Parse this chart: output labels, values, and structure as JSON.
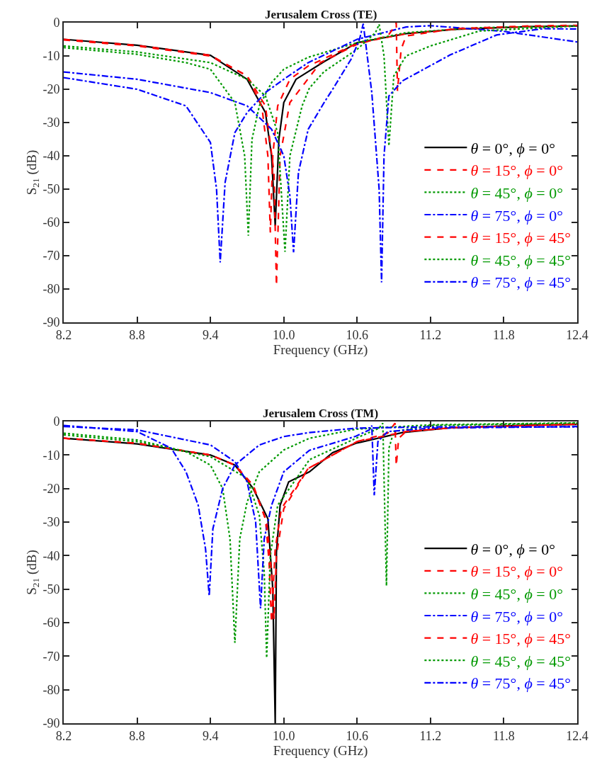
{
  "chart_data": [
    {
      "type": "line",
      "title": "Jerusalem Cross (TE)",
      "xlabel": "Frequency (GHz)",
      "ylabel": "S$_{21}$ (dB)",
      "xlim": [
        8.2,
        12.4
      ],
      "xticks": [
        8.2,
        8.8,
        9.4,
        {
          "value": 10,
          "label": "10.0"
        },
        10.6,
        11.2,
        11.8,
        12.4
      ],
      "ylim": [
        -90,
        0
      ],
      "yticks": [
        -90,
        -80,
        -70,
        -60,
        -50,
        -40,
        -30,
        -20,
        -10,
        0
      ],
      "legend": "bottom right",
      "series": [
        {
          "name": "θ = 0°, ϕ = 0°",
          "color": "#000000",
          "line_style": "solid",
          "x": [
            8.2,
            8.8,
            9.4,
            9.7,
            9.85,
            9.9,
            9.93,
            9.96,
            10.0,
            10.1,
            10.33,
            10.6,
            11.0,
            11.4,
            12.0,
            12.4
          ],
          "values": [
            -5,
            -6.8,
            -9.8,
            -17,
            -27,
            -40,
            -61,
            -35,
            -24,
            -17,
            -11.7,
            -6,
            -3.3,
            -2,
            -1.2,
            -1
          ]
        },
        {
          "name": "θ = 15°, ϕ = 0°",
          "color": "#ff0000",
          "line_style": "dashed",
          "x": [
            8.2,
            8.8,
            9.4,
            9.7,
            9.82,
            9.87,
            9.89,
            9.91,
            9.95,
            10.05,
            10.2,
            10.6,
            11.0,
            11.4,
            12.0,
            12.4
          ],
          "values": [
            -5.2,
            -7,
            -10,
            -16,
            -25,
            -40,
            -63,
            -40,
            -25,
            -17,
            -13,
            -6.2,
            -3.3,
            -2,
            -1.2,
            -1
          ]
        },
        {
          "name": "θ = 45°, ϕ = 0°",
          "color": "#009900",
          "line_style": "dotted",
          "x": [
            8.2,
            8.8,
            9.2,
            9.4,
            9.6,
            9.68,
            9.71,
            9.74,
            9.8,
            9.9,
            10.0,
            10.2,
            10.6,
            11.0,
            11.6,
            12.4
          ],
          "values": [
            -7.5,
            -9.5,
            -12,
            -14,
            -24,
            -40,
            -64,
            -35,
            -25,
            -18,
            -14,
            -10.4,
            -6,
            -3,
            -1.5,
            -1
          ]
        },
        {
          "name": "θ = 75°, ϕ = 0°",
          "color": "#0000ff",
          "line_style": "dashdot",
          "x": [
            8.2,
            8.8,
            9.2,
            9.4,
            9.45,
            9.48,
            9.52,
            9.6,
            9.7,
            9.85,
            10.0,
            10.2,
            10.6,
            11.0,
            11.2,
            11.8,
            12.4
          ],
          "values": [
            -16.5,
            -20,
            -25,
            -36,
            -50,
            -72,
            -48,
            -33,
            -27,
            -21,
            -17,
            -12,
            -5,
            -1.3,
            -0.9,
            -2.6,
            -5.8
          ]
        },
        {
          "name": "θ = 15°, ϕ = 45°",
          "color": "#ff0000",
          "line_style": "dashed",
          "x": [
            8.2,
            8.8,
            9.4,
            9.7,
            9.85,
            9.92,
            9.94,
            9.97,
            10.05,
            10.3,
            10.6,
            10.85,
            10.91,
            10.92,
            10.93,
            10.96,
            11.0,
            11.4,
            12.0,
            12.4
          ],
          "values": [
            -5,
            -6.8,
            -9.8,
            -16,
            -25,
            -45,
            -79,
            -40,
            -24,
            -12,
            -6.5,
            -4,
            -1,
            0,
            -20.5,
            -8,
            -4,
            -1.8,
            -1,
            -0.8
          ]
        },
        {
          "name": "θ = 45°, ϕ = 45°",
          "color": "#009900",
          "line_style": "dotted",
          "x": [
            8.2,
            8.8,
            9.4,
            9.7,
            9.85,
            9.95,
            10.01,
            10.05,
            10.15,
            10.21,
            10.33,
            10.6,
            10.75,
            10.78,
            10.82,
            10.86,
            10.9,
            11.0,
            11.2,
            11.6,
            12.4
          ],
          "values": [
            -7,
            -8.8,
            -12,
            -17,
            -22,
            -33,
            -68.8,
            -40,
            -25,
            -19.6,
            -14.7,
            -8,
            -3,
            -0.5,
            -10,
            -37,
            -16,
            -10,
            -7,
            -2.5,
            -1
          ]
        },
        {
          "name": "θ = 75°, ϕ = 45°",
          "color": "#0000ff",
          "line_style": "dashdot",
          "x": [
            8.2,
            8.8,
            9.4,
            9.7,
            9.9,
            10.0,
            10.05,
            10.08,
            10.12,
            10.2,
            10.33,
            10.4,
            10.55,
            10.62,
            10.65,
            10.72,
            10.78,
            10.8,
            10.82,
            10.86,
            10.97,
            11.36,
            11.74,
            12.12,
            12.4
          ],
          "values": [
            -14.8,
            -17,
            -21,
            -25,
            -32,
            -40,
            -52,
            -69,
            -45,
            -32,
            -24,
            -20,
            -11,
            -5,
            -0.3,
            -21,
            -50,
            -78,
            -40,
            -22,
            -17.5,
            -9.7,
            -3.7,
            -1.8,
            -1.9
          ]
        }
      ]
    },
    {
      "type": "line",
      "title": "Jerusalem Cross (TM)",
      "xlabel": "Frequency (GHz)",
      "ylabel": "S$_{21}$ (dB)",
      "xlim": [
        8.2,
        12.4
      ],
      "xticks": [
        8.2,
        8.8,
        9.4,
        {
          "value": 10,
          "label": "10.0"
        },
        10.6,
        11.2,
        11.8,
        12.4
      ],
      "ylim": [
        -90,
        0
      ],
      "yticks": [
        -90,
        -80,
        -70,
        -60,
        -50,
        -40,
        -30,
        -20,
        -10,
        0
      ],
      "legend": "bottom right",
      "series": [
        {
          "name": "θ = 0°, ϕ = 0°",
          "color": "#000000",
          "line_style": "solid",
          "x": [
            8.2,
            8.8,
            9.4,
            9.6,
            9.75,
            9.87,
            9.91,
            9.93,
            9.94,
            9.97,
            10.04,
            10.21,
            10.4,
            10.59,
            10.97,
            11.36,
            12.0,
            12.4
          ],
          "values": [
            -5,
            -6.7,
            -10,
            -13,
            -20,
            -29,
            -50,
            -90,
            -39,
            -25,
            -18,
            -15,
            -9.3,
            -6.5,
            -3.3,
            -1.9,
            -1.1,
            -0.9
          ]
        },
        {
          "name": "θ = 15°, ϕ = 0°",
          "color": "#ff0000",
          "line_style": "dashed",
          "x": [
            8.2,
            8.8,
            9.4,
            9.6,
            9.75,
            9.85,
            9.88,
            9.9,
            9.93,
            9.98,
            10.2,
            10.6,
            10.85,
            10.91,
            10.92,
            10.94,
            11.0,
            11.4,
            12.4
          ],
          "values": [
            -5,
            -6.5,
            -10,
            -13,
            -19.5,
            -29,
            -42,
            -60,
            -38,
            -26,
            -14,
            -6,
            -3.5,
            -0.5,
            -13.2,
            -5,
            -3,
            -1.8,
            -0.8
          ]
        },
        {
          "name": "θ = 45°, ϕ = 0°",
          "color": "#009900",
          "line_style": "dotted",
          "x": [
            8.2,
            8.8,
            9.4,
            9.7,
            9.8,
            9.84,
            9.86,
            9.89,
            9.95,
            10.21,
            10.59,
            10.78,
            10.81,
            10.84,
            10.86,
            10.9,
            11.2,
            12.4
          ],
          "values": [
            -4,
            -6,
            -10.5,
            -17,
            -28,
            -45,
            -70.5,
            -40,
            -25,
            -11.4,
            -5,
            -2,
            -0.5,
            -49,
            -8,
            -3,
            -1.2,
            -0.5
          ]
        },
        {
          "name": "θ = 75°, ϕ = 0°",
          "color": "#0000ff",
          "line_style": "dashdot",
          "x": [
            8.2,
            8.8,
            9.4,
            9.6,
            9.7,
            9.77,
            9.81,
            9.84,
            9.9,
            10.0,
            10.21,
            10.59,
            10.7,
            10.72,
            10.74,
            10.77,
            10.85,
            11.2,
            12.4
          ],
          "values": [
            -1.5,
            -2.5,
            -7,
            -12,
            -18,
            -30,
            -55.7,
            -35,
            -25,
            -15,
            -8.6,
            -4.4,
            -2.5,
            -1.2,
            -22,
            -6,
            -3,
            -2,
            -1.5
          ]
        },
        {
          "name": "θ = 15°, ϕ = 45°",
          "color": "#ff0000",
          "line_style": "dashed",
          "x": [
            8.2,
            8.8,
            9.4,
            9.6,
            9.75,
            9.86,
            9.9,
            9.92,
            9.94,
            10.0,
            10.2,
            10.6,
            11.0,
            11.4,
            12.4
          ],
          "values": [
            -5,
            -6.5,
            -10,
            -13,
            -19,
            -30,
            -45,
            -59,
            -40,
            -26,
            -14,
            -6,
            -3,
            -1.8,
            -0.8
          ]
        },
        {
          "name": "θ = 45°, ϕ = 45°",
          "color": "#009900",
          "line_style": "dotted",
          "x": [
            8.2,
            8.8,
            9.2,
            9.4,
            9.5,
            9.56,
            9.6,
            9.64,
            9.7,
            9.8,
            10.0,
            10.21,
            10.59,
            11.2,
            12.4
          ],
          "values": [
            -3.5,
            -5.5,
            -9,
            -13,
            -20,
            -35,
            -66,
            -35,
            -24,
            -15,
            -8.5,
            -5,
            -2.3,
            -1,
            -0.4
          ]
        },
        {
          "name": "θ = 75°, ϕ = 45°",
          "color": "#0000ff",
          "line_style": "dashdot",
          "x": [
            8.2,
            8.8,
            9.08,
            9.2,
            9.3,
            9.36,
            9.39,
            9.42,
            9.5,
            9.6,
            9.8,
            10.0,
            10.21,
            10.59,
            11.2,
            12.4
          ],
          "values": [
            -1.2,
            -3,
            -8,
            -15,
            -25,
            -38,
            -52,
            -32,
            -20,
            -13,
            -7,
            -4.5,
            -3.3,
            -2,
            -1.6,
            -1.6
          ]
        }
      ]
    }
  ]
}
